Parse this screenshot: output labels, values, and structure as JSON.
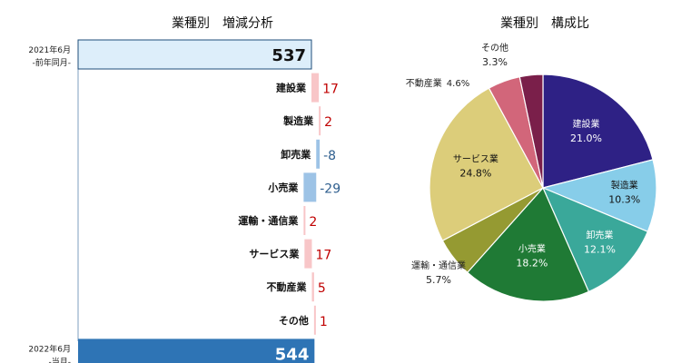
{
  "chart_data": [
    {
      "type": "bar",
      "title": "業種別　増減分析",
      "start": {
        "label_line1": "2021年6月",
        "label_line2": "-前年同月-",
        "value": 537
      },
      "end": {
        "label_line1": "2022年6月",
        "label_line2": "-当月-",
        "value": 544
      },
      "categories": [
        "建設業",
        "製造業",
        "卸売業",
        "小売業",
        "運輸・通信業",
        "サービス業",
        "不動産業",
        "その他"
      ],
      "values": [
        17,
        2,
        -8,
        -29,
        2,
        17,
        5,
        1
      ],
      "colors": {
        "start": "#ddeefa",
        "start_border": "#1f4e79",
        "end": "#2e74b5",
        "increase": "#f8c6c8",
        "decrease": "#9dc3e6",
        "increase_text": "#c00000",
        "decrease_text": "#2e5e8e"
      }
    },
    {
      "type": "pie",
      "title": "業種別　構成比",
      "categories": [
        "建設業",
        "製造業",
        "卸売業",
        "小売業",
        "運輸・通信業",
        "サービス業",
        "不動産業",
        "その他"
      ],
      "values": [
        21.0,
        10.3,
        12.1,
        18.2,
        5.7,
        24.8,
        4.6,
        3.3
      ],
      "value_labels": [
        "21.0%",
        "10.3%",
        "12.1%",
        "18.2%",
        "5.7%",
        "24.8%",
        "4.6%",
        "3.3%"
      ],
      "colors": [
        "#2e2185",
        "#87cde9",
        "#3aa89a",
        "#1f7a35",
        "#959a32",
        "#dccd7a",
        "#d2667a",
        "#7a1f4a"
      ]
    }
  ]
}
